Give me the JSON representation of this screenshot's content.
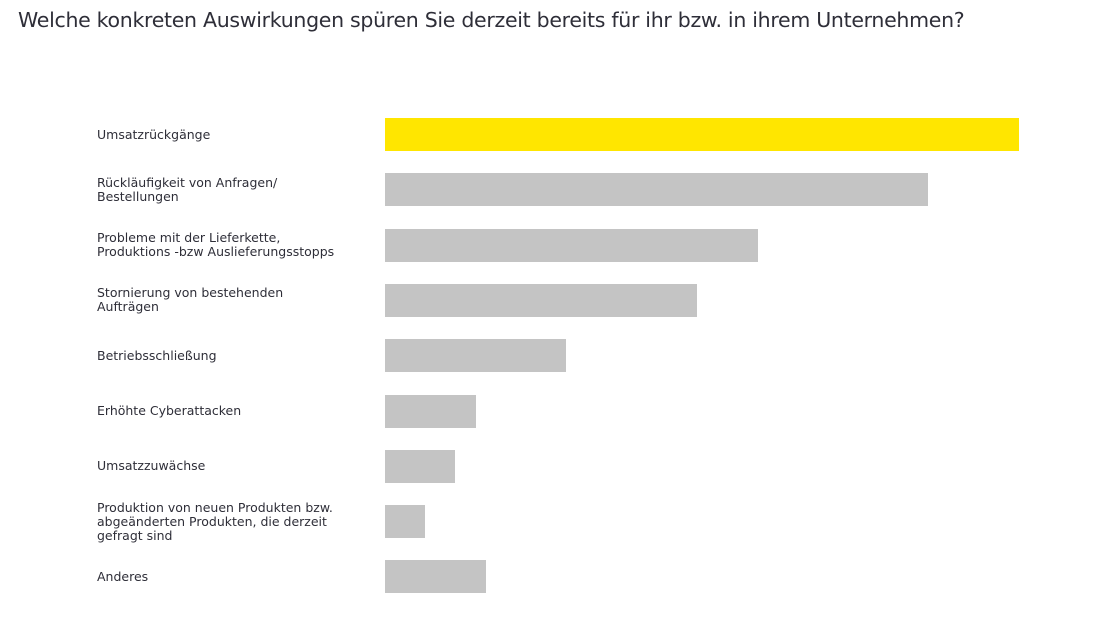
{
  "title": "Welche konkreten Auswirkungen spüren Sie derzeit bereits für ihr bzw. in ihrem Unternehmen?",
  "colors": {
    "highlight": "#ffe600",
    "default": "#c4c4c4",
    "text": "#2e2e38"
  },
  "chart_data": {
    "type": "bar",
    "orientation": "horizontal",
    "title": "Welche konkreten Auswirkungen spüren Sie derzeit bereits für ihr bzw. in ihrem Unternehmen?",
    "xlabel": "",
    "ylabel": "",
    "value_scale": "relative (largest = 100), no axis shown",
    "xlim": [
      0,
      100
    ],
    "grid": false,
    "legend": "none",
    "categories": [
      "Umsatzrückgänge",
      "Rückläufigkeit von Anfragen/\nBestellungen",
      "Probleme mit der Lieferkette,\nProduktions -bzw Auslieferungsstopps",
      "Stornierung von bestehenden\nAufträgen",
      "Betriebsschließung",
      "Erhöhte Cyberattacken",
      "Umsatzzuwächse",
      "Produktion von neuen Produkten bzw.\nabgeänderten Produkten, die derzeit\ngefragt sind",
      "Anderes"
    ],
    "values": [
      100,
      85.6,
      58.8,
      49.2,
      28.5,
      14.4,
      11.0,
      6.3,
      15.9
    ],
    "highlighted_index": 0
  }
}
